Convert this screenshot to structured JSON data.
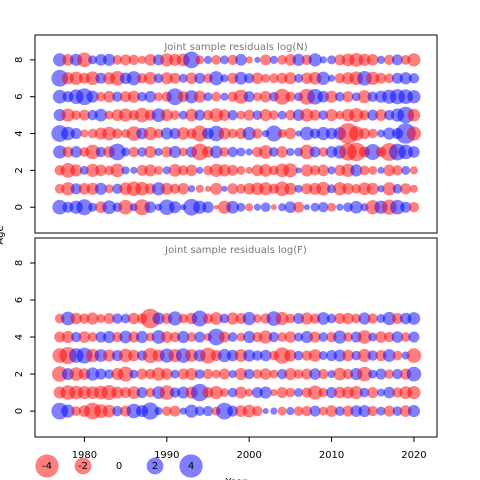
{
  "chart_data": [
    {
      "type": "bubble",
      "title": "Joint sample residuals log(N)",
      "ylabel": "Age",
      "colors": {
        "positive": "#0000ff",
        "negative": "#ff0000"
      },
      "xlim": [
        1974,
        2022.8
      ],
      "ylim": [
        -1.4,
        9.35
      ],
      "yticks": [
        0,
        2,
        4,
        6,
        8
      ],
      "x": [
        1977,
        1978,
        1979,
        1980,
        1981,
        1982,
        1983,
        1984,
        1985,
        1986,
        1987,
        1988,
        1989,
        1990,
        1991,
        1992,
        1993,
        1994,
        1995,
        1996,
        1997,
        1998,
        1999,
        2000,
        2001,
        2002,
        2003,
        2004,
        2005,
        2006,
        2007,
        2008,
        2009,
        2010,
        2011,
        2012,
        2013,
        2014,
        2015,
        2016,
        2017,
        2018,
        2019,
        2020
      ],
      "ages": [
        0,
        1,
        2,
        3,
        4,
        5,
        6,
        7,
        8
      ],
      "values": [
        [
          1.5,
          0.8,
          1.2,
          1.8,
          0.5,
          -0.9,
          1.3,
          0.6,
          -1.5,
          0.4,
          -1.8,
          0.9,
          0.3,
          1.7,
          1.0,
          0.2,
          2.0,
          1.2,
          0.9,
          -0.1,
          -1.2,
          1.1,
          0.5,
          -0.4,
          0.3,
          0.6,
          -0.2,
          0.4,
          0.9,
          -0.8,
          0.2,
          0.5,
          0.7,
          -0.5,
          0.3,
          0.6,
          1.1,
          0.4,
          -1.4,
          1.2,
          -1.6,
          1.5,
          0.8,
          -0.7
        ],
        [
          -0.6,
          -1.2,
          0.8,
          -0.9,
          -1.0,
          1.0,
          -0.5,
          0.7,
          -1.1,
          -1.5,
          -1.3,
          -0.8,
          1.2,
          -1.0,
          -0.7,
          -0.9,
          0.3,
          -0.4,
          -0.2,
          -1.0,
          0.2,
          -0.8,
          -0.6,
          -0.9,
          -1.1,
          -1.2,
          -0.7,
          -1.5,
          -1.0,
          0.4,
          -0.8,
          -1.0,
          -1.3,
          0.5,
          -1.2,
          -0.9,
          -0.6,
          -1.1,
          -1.0,
          0.3,
          -1.2,
          0.6,
          -0.8,
          -0.4
        ],
        [
          -0.7,
          -1.5,
          -1.0,
          0.5,
          -1.2,
          -0.9,
          -0.6,
          -1.3,
          0.4,
          0.3,
          -0.8,
          -1.0,
          -0.5,
          0.4,
          -1.1,
          -0.7,
          -0.9,
          0.3,
          -0.6,
          -1.2,
          -1.0,
          -0.8,
          -0.5,
          -0.3,
          -0.9,
          -1.1,
          -0.6,
          -1.3,
          -1.4,
          0.2,
          -1.0,
          -0.7,
          -0.9,
          0.4,
          -0.8,
          -1.2,
          1.0,
          -0.6,
          -0.5,
          0.3,
          -0.9,
          -0.7,
          0.5,
          -0.4
        ],
        [
          1.2,
          -0.8,
          0.9,
          -0.6,
          -1.5,
          0.7,
          -0.9,
          2.0,
          0.5,
          -0.7,
          0.6,
          -1.0,
          0.4,
          -0.8,
          1.0,
          -0.5,
          0.8,
          -2.0,
          -0.9,
          1.1,
          -0.6,
          0.7,
          0.5,
          0.3,
          -0.7,
          -1.3,
          0.6,
          -0.9,
          0.4,
          0.5,
          -1.5,
          0.8,
          -0.6,
          0.9,
          1.2,
          -2.2,
          -2.5,
          -0.8,
          1.8,
          -0.7,
          -2.3,
          2.0,
          1.5,
          0.9
        ],
        [
          2.0,
          1.3,
          0.8,
          -0.4,
          -0.6,
          -1.0,
          -1.3,
          -0.7,
          -0.5,
          -1.5,
          0.9,
          -1.2,
          -0.6,
          1.0,
          0.8,
          -1.1,
          -0.7,
          -1.8,
          0.9,
          1.7,
          -1.0,
          -0.6,
          -0.8,
          1.2,
          -0.7,
          0.3,
          1.8,
          -0.5,
          -0.9,
          0.2,
          1.3,
          0.7,
          1.2,
          0.9,
          1.1,
          -3.2,
          -1.5,
          -0.8,
          -0.6,
          0.4,
          1.0,
          0.8,
          3.0,
          -1.4
        ],
        [
          1.0,
          -1.2,
          -0.6,
          -0.8,
          0.7,
          1.1,
          -0.5,
          -0.9,
          -1.2,
          -0.7,
          -1.5,
          -0.8,
          1.3,
          -1.0,
          -0.6,
          0.5,
          -1.1,
          0.8,
          -0.7,
          -1.3,
          -0.9,
          0.7,
          -0.5,
          -0.8,
          0.6,
          -1.0,
          -0.6,
          0.5,
          -0.7,
          0.9,
          -1.2,
          -0.8,
          0.6,
          -1.0,
          -0.5,
          -1.1,
          -1.4,
          -0.7,
          0.8,
          -0.9,
          0.7,
          1.2,
          2.0,
          -1.1
        ],
        [
          1.3,
          0.8,
          1.5,
          2.0,
          1.0,
          -0.6,
          -0.9,
          0.7,
          -0.8,
          -1.0,
          0.6,
          0.9,
          -0.5,
          -0.7,
          2.0,
          -0.8,
          1.2,
          -1.0,
          0.5,
          -0.6,
          0.4,
          -0.7,
          -1.4,
          0.8,
          -0.5,
          -0.9,
          0.6,
          -1.8,
          -0.7,
          0.5,
          -1.8,
          1.7,
          0.9,
          -1.0,
          0.6,
          -0.8,
          0.5,
          -1.2,
          0.7,
          1.0,
          1.4,
          1.6,
          1.5,
          1.2
        ],
        [
          2.0,
          -1.0,
          -1.2,
          -0.8,
          -1.3,
          0.8,
          -1.0,
          -1.5,
          0.9,
          1.4,
          -0.7,
          -1.1,
          0.6,
          -1.0,
          -0.8,
          0.5,
          -0.9,
          0.8,
          -0.6,
          1.4,
          0.4,
          -0.8,
          1.1,
          0.7,
          -0.9,
          -0.5,
          -0.6,
          -0.8,
          -1.0,
          0.5,
          -0.9,
          -1.1,
          1.2,
          0.3,
          -0.7,
          -1.0,
          -1.3,
          1.5,
          -1.2,
          -0.8,
          -0.6,
          0.8,
          1.0,
          0.7
        ],
        [
          1.2,
          -0.9,
          1.0,
          -1.5,
          0.5,
          0.9,
          1.0,
          -0.6,
          -0.8,
          -0.7,
          -0.4,
          -0.9,
          0.8,
          -1.2,
          -1.0,
          -1.1,
          2.0,
          -0.5,
          0.4,
          -0.6,
          0.5,
          -0.7,
          0.9,
          -0.3,
          0.2,
          -0.8,
          0.4,
          -0.6,
          -0.9,
          1.0,
          -0.7,
          1.2,
          0.3,
          0.5,
          -0.8,
          -1.1,
          -1.3,
          -1.0,
          -0.9,
          0.4,
          -0.7,
          0.8,
          -0.6,
          -1.2
        ]
      ]
    },
    {
      "type": "bubble",
      "title": "Joint sample residuals log(F)",
      "xlabel": "Year",
      "colors": {
        "positive": "#0000ff",
        "negative": "#ff0000"
      },
      "xlim": [
        1974,
        2022.8
      ],
      "xticks": [
        1980,
        1990,
        2000,
        2010,
        2020
      ],
      "ylim": [
        -1.4,
        9.35
      ],
      "yticks": [
        0,
        2,
        4,
        6,
        8
      ],
      "legend": [
        -4,
        -2,
        0,
        2,
        4
      ],
      "x": [
        1977,
        1978,
        1979,
        1980,
        1981,
        1982,
        1983,
        1984,
        1985,
        1986,
        1987,
        1988,
        1989,
        1990,
        1991,
        1992,
        1993,
        1994,
        1995,
        1996,
        1997,
        1998,
        1999,
        2000,
        2001,
        2002,
        2003,
        2004,
        2005,
        2006,
        2007,
        2008,
        2009,
        2010,
        2011,
        2012,
        2013,
        2014,
        2015,
        2016,
        2017,
        2018,
        2019,
        2020
      ],
      "ages": [
        0,
        1,
        2,
        3,
        4,
        5
      ],
      "values": [
        [
          2.0,
          1.2,
          -0.6,
          -0.9,
          -2.0,
          -1.3,
          -1.1,
          0.7,
          -0.8,
          1.5,
          1.0,
          2.1,
          0.4,
          -0.6,
          -0.8,
          0.3,
          1.2,
          0.6,
          0.7,
          -0.5,
          2.0,
          0.8,
          -0.9,
          -1.1,
          -0.7,
          0.2,
          0.3,
          -0.5,
          0.4,
          -0.6,
          -0.7,
          0.8,
          -0.5,
          -0.9,
          0.6,
          -0.8,
          0.9,
          1.0,
          -0.7,
          0.5,
          -0.8,
          0.6,
          -0.9,
          1.0
        ],
        [
          -1.0,
          -1.5,
          -1.3,
          -1.2,
          -1.1,
          -1.3,
          -1.6,
          -1.0,
          -0.8,
          -1.1,
          0.8,
          -0.6,
          1.1,
          -1.5,
          0.7,
          1.0,
          -1.0,
          2.2,
          -0.8,
          -1.2,
          -0.5,
          0.6,
          -1.0,
          -0.4,
          0.8,
          1.0,
          -0.3,
          -0.8,
          -0.6,
          0.5,
          -0.7,
          -1.4,
          -0.6,
          0.8,
          -0.9,
          -1.0,
          -1.2,
          0.6,
          -0.8,
          0.4,
          0.9,
          -0.7,
          -1.1,
          -1.2
        ],
        [
          -1.7,
          1.0,
          -1.3,
          -0.9,
          1.2,
          0.8,
          0.6,
          -1.0,
          -1.6,
          0.5,
          -0.8,
          -0.7,
          -1.2,
          -0.9,
          0.5,
          -0.8,
          -1.0,
          0.6,
          -0.7,
          -0.5,
          -0.8,
          0.4,
          -1.0,
          0.7,
          -0.6,
          -0.9,
          -0.5,
          0.7,
          -1.0,
          -0.6,
          -0.8,
          0.9,
          -0.7,
          0.4,
          -1.1,
          -0.7,
          1.0,
          -1.5,
          0.5,
          0.8,
          -0.6,
          0.7,
          -0.8,
          1.5
        ],
        [
          -1.5,
          -2.1,
          1.5,
          1.8,
          -1.2,
          1.1,
          -1.0,
          0.8,
          -1.3,
          -0.9,
          0.7,
          -1.6,
          -1.0,
          1.4,
          -1.2,
          1.5,
          -1.1,
          1.0,
          -1.8,
          -0.8,
          1.2,
          0.9,
          -1.1,
          1.0,
          0.7,
          0.9,
          -0.6,
          -1.9,
          -1.0,
          0.6,
          -0.7,
          -1.1,
          0.5,
          0.8,
          1.0,
          -0.9,
          0.6,
          -1.2,
          0.7,
          -0.8,
          1.1,
          -0.6,
          0.4,
          -1.5
        ],
        [
          -0.8,
          -1.0,
          0.7,
          -0.9,
          -0.6,
          0.8,
          1.0,
          -0.7,
          1.1,
          -0.8,
          1.0,
          -0.5,
          1.3,
          -0.9,
          -0.7,
          1.0,
          -0.6,
          0.8,
          -0.4,
          2.0,
          -0.8,
          0.6,
          -0.5,
          1.0,
          -0.7,
          -1.2,
          0.7,
          -0.6,
          -0.9,
          0.5,
          1.0,
          -0.8,
          0.6,
          -0.7,
          1.2,
          -0.6,
          0.8,
          -1.3,
          0.5,
          -0.9,
          -0.7,
          0.9,
          -0.6,
          0.8
        ],
        [
          -0.6,
          1.3,
          -0.9,
          -0.7,
          -1.0,
          -0.5,
          -0.8,
          0.7,
          0.6,
          -0.9,
          -0.7,
          -2.8,
          1.0,
          -0.8,
          1.4,
          -0.6,
          -0.9,
          1.8,
          -0.7,
          -1.1,
          0.6,
          -1.0,
          -0.8,
          1.2,
          -0.5,
          -0.7,
          1.5,
          -1.2,
          -0.6,
          0.8,
          -1.0,
          -0.7,
          1.1,
          0.6,
          -0.8,
          -0.9,
          -0.6,
          1.0,
          -0.7,
          0.5,
          1.2,
          -0.8,
          0.9,
          1.1
        ]
      ]
    }
  ]
}
